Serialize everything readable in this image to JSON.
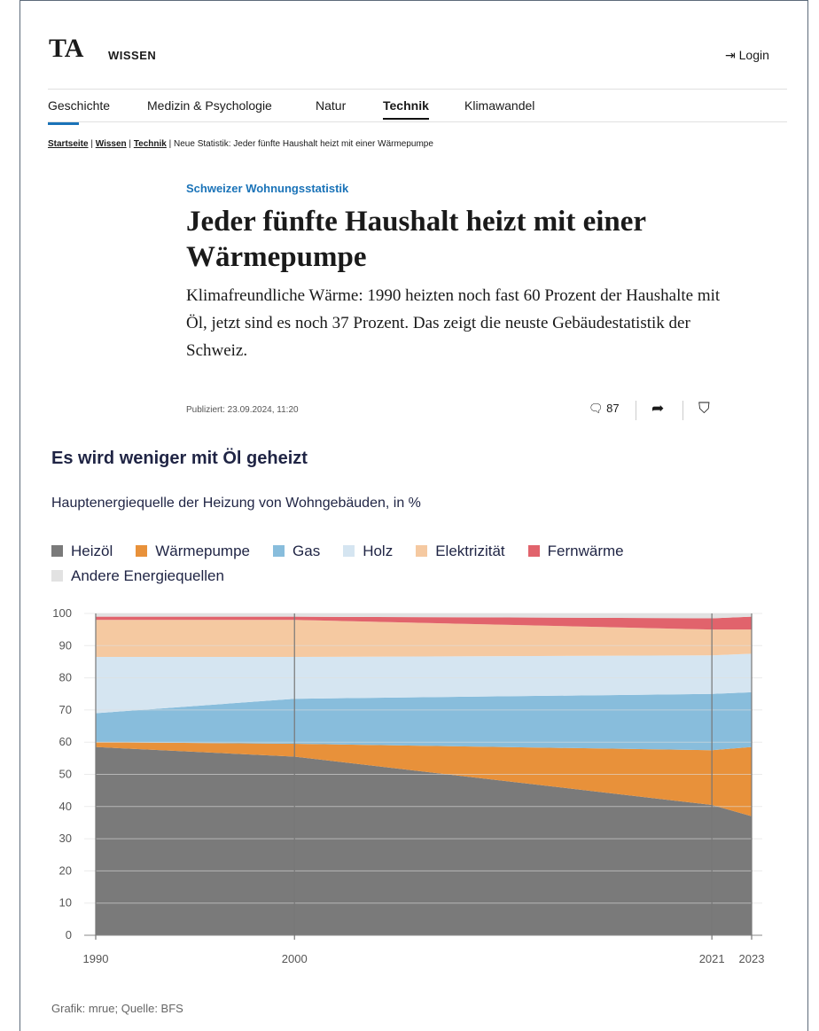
{
  "header": {
    "logo": "TA",
    "section": "WISSEN",
    "login": "Login"
  },
  "nav": [
    "Geschichte",
    "Medizin & Psychologie",
    "Natur",
    "Technik",
    "Klimawandel"
  ],
  "breadcrumb": [
    "Startseite",
    "Wissen",
    "Technik",
    "Neue Statistik: Jeder fünfte Haushalt heizt mit einer Wärmepumpe"
  ],
  "article": {
    "kicker": "Schweizer Wohnungsstatistik",
    "title": "Jeder fünfte Haushalt heizt mit einer Wärmepumpe",
    "lead": "Klimafreundliche Wärme: 1990 heizten noch fast 60 Prozent der Haushalte mit Öl, jetzt sind es noch 37 Prozent. Das zeigt die neuste Gebäudestatistik der Schweiz.",
    "published": "Publiziert: 23.09.2024, 11:20",
    "comments": "87"
  },
  "chart_data": {
    "type": "stacked_area",
    "title": "Es wird weniger mit Öl geheizt",
    "subtitle": "Hauptenergiequelle der Heizung von Wohngebäuden, in %",
    "x": [
      1990,
      2000,
      2021,
      2023
    ],
    "xlim": [
      1990,
      2023
    ],
    "xticks": [
      1990,
      2000,
      2021,
      2023
    ],
    "ylim": [
      0,
      100
    ],
    "yticks": [
      0,
      10,
      20,
      30,
      40,
      50,
      60,
      70,
      80,
      90,
      100
    ],
    "grid": true,
    "series": [
      {
        "name": "Heizöl",
        "color": "#7a7a7a",
        "values": [
          58.5,
          55.5,
          40.5,
          37
        ]
      },
      {
        "name": "Wärmepumpe",
        "color": "#e8913a",
        "values": [
          1.5,
          4,
          17,
          21.5
        ]
      },
      {
        "name": "Gas",
        "color": "#88bddc",
        "values": [
          9,
          14,
          17.5,
          17
        ]
      },
      {
        "name": "Holz",
        "color": "#d5e5f1",
        "values": [
          17.5,
          13,
          12,
          12
        ]
      },
      {
        "name": "Elektrizität",
        "color": "#f5c9a1",
        "values": [
          11.5,
          11.5,
          8,
          7.5
        ]
      },
      {
        "name": "Fernwärme",
        "color": "#e1636c",
        "values": [
          1,
          1,
          3.5,
          4
        ]
      },
      {
        "name": "Andere Energiequellen",
        "color": "#e2e2e2",
        "values": [
          1,
          1,
          1.5,
          1
        ]
      }
    ],
    "source": "Grafik: mrue; Quelle: BFS"
  }
}
